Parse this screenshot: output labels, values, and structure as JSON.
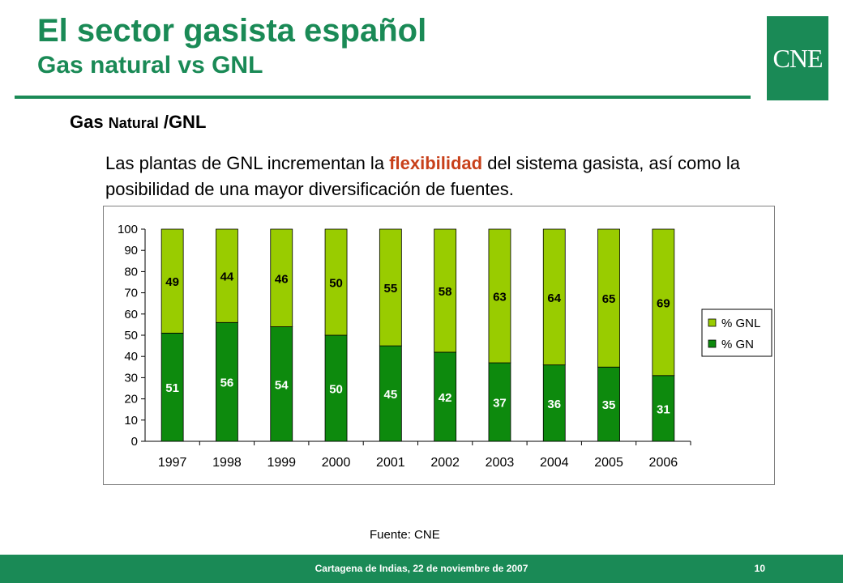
{
  "header": {
    "title": "El sector gasista español",
    "subtitle": "Gas natural vs GNL",
    "logo_text": "CNE"
  },
  "section": {
    "heading_part1": "Gas ",
    "heading_part2": "Natural",
    "heading_part3": " /GNL",
    "text_before": "Las plantas de GNL incrementan la ",
    "text_highlight": "flexibilidad",
    "text_after": " del sistema gasista, así como la posibilidad de una mayor diversificación de fuentes."
  },
  "source": "Fuente: CNE",
  "footer": {
    "text": "Cartagena de Indias, 22 de noviembre de 2007",
    "page": "10"
  },
  "colors": {
    "brand": "#1a8a56",
    "gn": "#0d8a0d",
    "gnl": "#99cc00",
    "highlight": "#c8401a"
  },
  "chart_data": {
    "type": "bar",
    "stacked": true,
    "categories": [
      "1997",
      "1998",
      "1999",
      "2000",
      "2001",
      "2002",
      "2003",
      "2004",
      "2005",
      "2006"
    ],
    "series": [
      {
        "name": "% GN",
        "values": [
          51,
          56,
          54,
          50,
          45,
          42,
          37,
          36,
          35,
          31
        ],
        "color": "#0d8a0d"
      },
      {
        "name": "% GNL",
        "values": [
          49,
          44,
          46,
          50,
          55,
          58,
          63,
          64,
          65,
          69
        ],
        "color": "#99cc00"
      }
    ],
    "ylim": [
      0,
      100
    ],
    "yticks": [
      "0",
      "10",
      "20",
      "30",
      "40",
      "50",
      "60",
      "70",
      "80",
      "90",
      "100"
    ],
    "legend_position": "right",
    "legend_order": [
      "% GNL",
      "% GN"
    ]
  }
}
